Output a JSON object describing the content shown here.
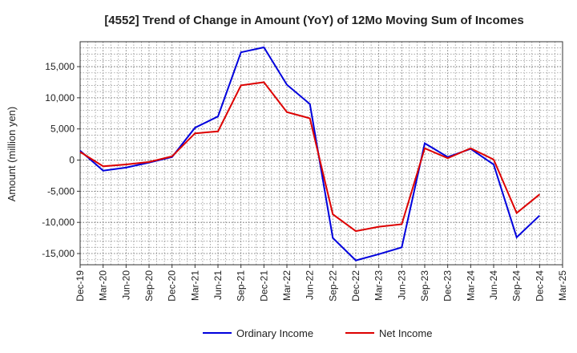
{
  "chart_data": {
    "type": "line",
    "title": "[4552]  Trend of Change in Amount (YoY) of 12Mo Moving Sum of Incomes",
    "xlabel": "",
    "ylabel": "Amount (million yen)",
    "x_ticks": [
      "Dec-19",
      "Mar-20",
      "Jun-20",
      "Sep-20",
      "Dec-20",
      "Mar-21",
      "Jun-21",
      "Sep-21",
      "Dec-21",
      "Mar-22",
      "Jun-22",
      "Sep-22",
      "Dec-22",
      "Mar-23",
      "Jun-23",
      "Sep-23",
      "Dec-23",
      "Mar-24",
      "Jun-24",
      "Sep-24",
      "Dec-24",
      "Mar-25"
    ],
    "x": [
      "Dec-19",
      "Mar-20",
      "Jun-20",
      "Sep-20",
      "Dec-20",
      "Mar-21",
      "Jun-21",
      "Sep-21",
      "Dec-21",
      "Mar-22",
      "Jun-22",
      "Sep-22",
      "Dec-22",
      "Mar-23",
      "Jun-23",
      "Sep-23",
      "Dec-23",
      "Mar-24",
      "Jun-24",
      "Sep-24",
      "Dec-24"
    ],
    "y_ticks": [
      15000,
      10000,
      5000,
      0,
      -5000,
      -10000,
      -15000
    ],
    "y_tick_labels": [
      "15,000",
      "10,000",
      "5,000",
      "0",
      "-5,000",
      "-10,000",
      "-15,000"
    ],
    "ylim": [
      -16800,
      19000
    ],
    "grid": true,
    "legend_position": "bottom",
    "series": [
      {
        "name": "Ordinary Income",
        "color": "#0000dd",
        "values": [
          1500,
          -1700,
          -1200,
          -400,
          500,
          5200,
          7000,
          17300,
          18100,
          12100,
          9000,
          -12500,
          -16100,
          -15100,
          -14000,
          2700,
          500,
          1800,
          -700,
          -12400,
          -8900
        ]
      },
      {
        "name": "Net Income",
        "color": "#dd0000",
        "values": [
          1300,
          -1000,
          -700,
          -300,
          600,
          4300,
          4600,
          12000,
          12500,
          7700,
          6700,
          -8700,
          -11400,
          -10700,
          -10300,
          1900,
          300,
          1900,
          100,
          -8500,
          -5500
        ]
      }
    ]
  }
}
